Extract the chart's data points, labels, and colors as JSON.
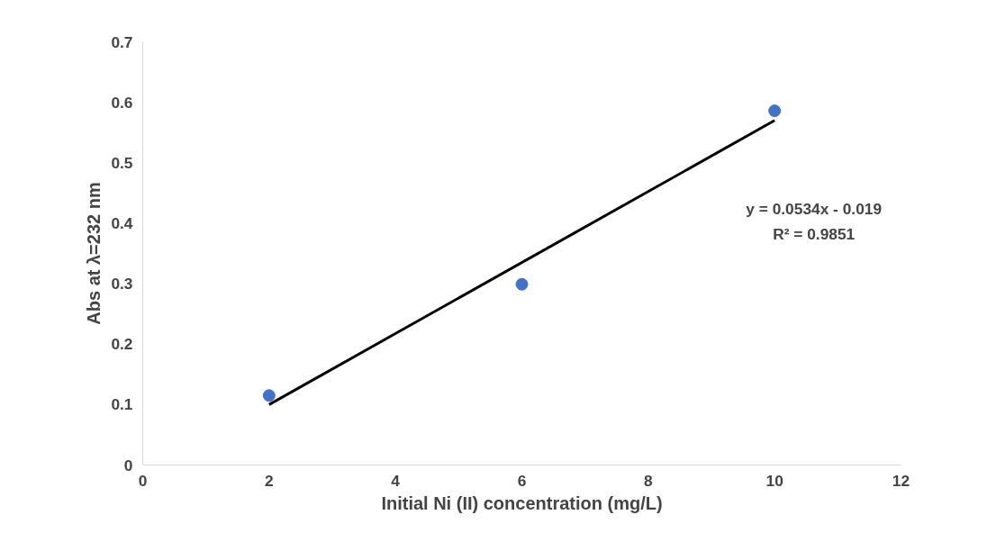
{
  "chart_data": {
    "type": "scatter",
    "xlabel": "Initial Ni (II) concentration (mg/L)",
    "ylabel": "Abs at λ=232 nm",
    "series": [
      {
        "color": "#4472c4",
        "x": [
          2,
          6,
          10
        ],
        "values": [
          0.115,
          0.299,
          0.586
        ],
        "marker": "circle"
      },
      {
        "type": "line",
        "color": "#000000",
        "x": [
          2,
          10
        ],
        "values": [
          0.1,
          0.57
        ],
        "marker": "none"
      }
    ],
    "xlim": [
      0,
      12
    ],
    "xticks": [
      0,
      2,
      4,
      6,
      8,
      10,
      12
    ],
    "ylim": [
      0,
      0.7
    ],
    "yticks": [
      0,
      0.1,
      0.2,
      0.3,
      0.4,
      0.5,
      0.6,
      0.7
    ],
    "annotations": [
      "y = 0.0534x - 0.019",
      "R² = 0.9851"
    ],
    "grid": false
  }
}
